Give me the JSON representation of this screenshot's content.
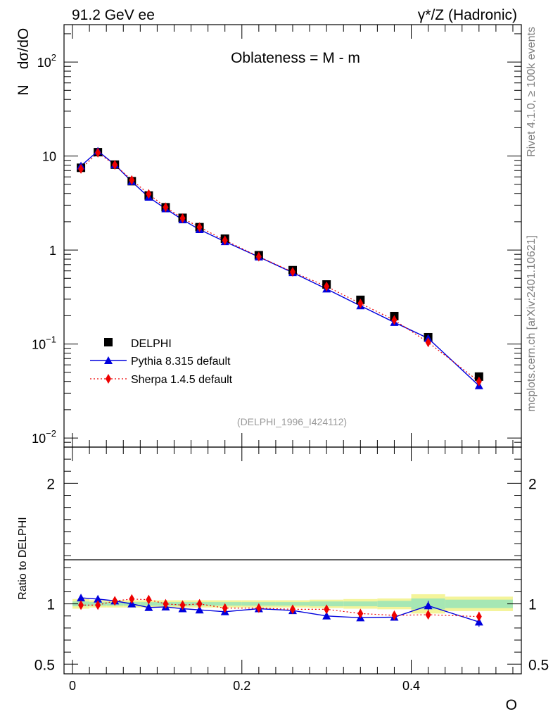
{
  "header": {
    "left": "91.2 GeV ee",
    "right": "γ*/Z (Hadronic)"
  },
  "side_labels": {
    "rivet": "Rivet 4.1.0, ≥ 100k events",
    "mcplots": "mcplots.cern.ch [arXiv:2401.10621]"
  },
  "chart_data": [
    {
      "panel": "main",
      "type": "scatter",
      "title": "Oblateness = M - m",
      "ylabel_n": "N",
      "ylabel_frac": "dσ/dO",
      "xlabel": "O",
      "yscale": "log",
      "xlim": [
        -0.01,
        0.53
      ],
      "ylim": [
        0.008,
        250
      ],
      "x_ticks": [
        0,
        0.2,
        0.4
      ],
      "x_tick_labels": [
        "0",
        "0.2",
        "0.4"
      ],
      "y_ticks": [
        0.01,
        0.1,
        1,
        10,
        100
      ],
      "y_tick_labels": [
        {
          "base": "10",
          "exp": "−2"
        },
        {
          "base": "10",
          "exp": "−1"
        },
        {
          "base": "1",
          "exp": ""
        },
        {
          "base": "10",
          "exp": ""
        },
        {
          "base": "10",
          "exp": "2"
        }
      ],
      "watermark": "(DELPHI_1996_I424112)",
      "legend_position": "lower-left",
      "series": [
        {
          "name": "DELPHI",
          "style": "data",
          "color": "#000000",
          "x": [
            0.01,
            0.03,
            0.05,
            0.07,
            0.09,
            0.11,
            0.13,
            0.15,
            0.18,
            0.22,
            0.26,
            0.3,
            0.34,
            0.38,
            0.42,
            0.48
          ],
          "y": [
            7.5,
            11.0,
            8.1,
            5.4,
            3.8,
            2.85,
            2.2,
            1.75,
            1.32,
            0.88,
            0.61,
            0.43,
            0.295,
            0.198,
            0.118,
            0.045
          ]
        },
        {
          "name": "Pythia 8.315 default",
          "style": "line",
          "color": "#0000dd",
          "x": [
            0.01,
            0.03,
            0.05,
            0.07,
            0.09,
            0.11,
            0.13,
            0.15,
            0.18,
            0.22,
            0.26,
            0.3,
            0.34,
            0.38,
            0.42,
            0.48
          ],
          "y": [
            7.85,
            11.3,
            8.1,
            5.35,
            3.65,
            2.75,
            2.1,
            1.65,
            1.23,
            0.845,
            0.575,
            0.385,
            0.255,
            0.17,
            0.115,
            0.036
          ]
        },
        {
          "name": "Sherpa 1.4.5 default",
          "style": "dotted",
          "color": "#ee0000",
          "x": [
            0.01,
            0.03,
            0.05,
            0.07,
            0.09,
            0.11,
            0.13,
            0.15,
            0.18,
            0.22,
            0.26,
            0.3,
            0.34,
            0.38,
            0.42,
            0.48
          ],
          "y": [
            7.3,
            10.85,
            8.05,
            5.55,
            3.95,
            2.85,
            2.18,
            1.75,
            1.27,
            0.85,
            0.585,
            0.41,
            0.27,
            0.18,
            0.104,
            0.04
          ]
        }
      ]
    },
    {
      "panel": "ratio",
      "type": "line",
      "ylabel": "Ratio to DELPHI",
      "xlabel": "O",
      "ylim": [
        0.42,
        2.3
      ],
      "y_ticks": [
        0.5,
        1,
        2
      ],
      "y_tick_labels": [
        "0.5",
        "1",
        "2"
      ],
      "x_ticks": [
        0,
        0.2,
        0.4
      ],
      "x_tick_labels": [
        "0",
        "0.2",
        "0.4"
      ],
      "band_edges": [
        0.0,
        0.02,
        0.04,
        0.06,
        0.08,
        0.1,
        0.12,
        0.14,
        0.16,
        0.2,
        0.24,
        0.28,
        0.32,
        0.36,
        0.4,
        0.44,
        0.52
      ],
      "band_inner": [
        0.02,
        0.015,
        0.015,
        0.015,
        0.015,
        0.015,
        0.015,
        0.015,
        0.015,
        0.015,
        0.015,
        0.02,
        0.02,
        0.025,
        0.045,
        0.035
      ],
      "band_outer": [
        0.04,
        0.03,
        0.03,
        0.03,
        0.03,
        0.03,
        0.03,
        0.03,
        0.03,
        0.03,
        0.03,
        0.035,
        0.04,
        0.045,
        0.08,
        0.06
      ],
      "series": [
        {
          "name": "Pythia 8.315 default",
          "color": "#0000dd",
          "x": [
            0.01,
            0.03,
            0.05,
            0.07,
            0.09,
            0.11,
            0.13,
            0.15,
            0.18,
            0.22,
            0.26,
            0.3,
            0.34,
            0.38,
            0.42,
            0.48
          ],
          "y": [
            1.05,
            1.04,
            1.025,
            1.0,
            0.97,
            0.975,
            0.96,
            0.95,
            0.935,
            0.96,
            0.945,
            0.9,
            0.885,
            0.89,
            0.985,
            0.85
          ],
          "err": [
            0,
            0,
            0,
            0,
            0,
            0,
            0,
            0,
            0,
            0,
            0,
            0,
            0,
            0.02,
            0.04,
            0.04
          ]
        },
        {
          "name": "Sherpa 1.4.5 default",
          "color": "#ee0000",
          "x": [
            0.01,
            0.03,
            0.05,
            0.07,
            0.09,
            0.11,
            0.13,
            0.15,
            0.18,
            0.22,
            0.26,
            0.3,
            0.34,
            0.38,
            0.42,
            0.48
          ],
          "y": [
            0.99,
            0.99,
            1.025,
            1.04,
            1.035,
            1.0,
            0.99,
            1.0,
            0.965,
            0.965,
            0.955,
            0.955,
            0.92,
            0.905,
            0.91,
            0.895
          ],
          "err": [
            0,
            0,
            0,
            0,
            0,
            0,
            0,
            0,
            0,
            0,
            0,
            0,
            0.02,
            0.025,
            0.035,
            0.04
          ]
        }
      ]
    }
  ]
}
